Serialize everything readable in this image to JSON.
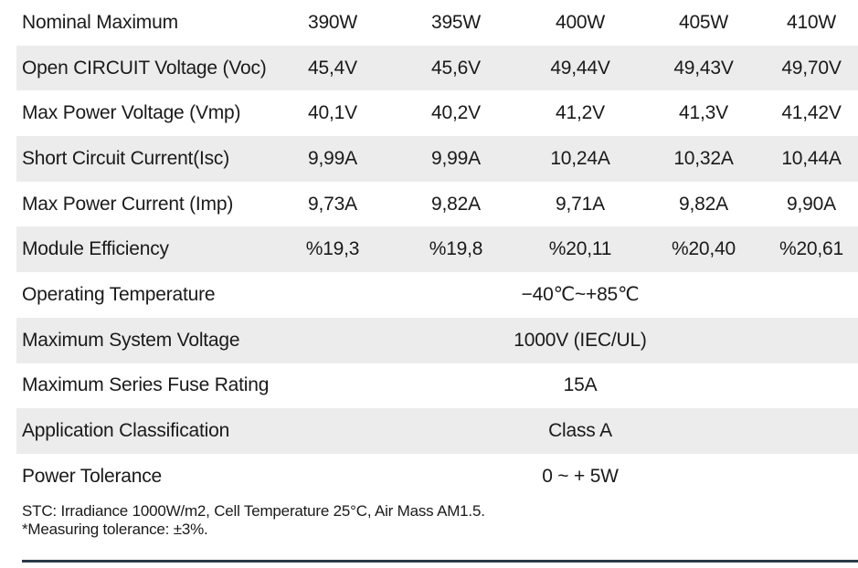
{
  "rows": [
    {
      "label": "Nominal Maximum",
      "values": [
        "390W",
        "395W",
        "400W",
        "405W",
        "410W"
      ]
    },
    {
      "label": "Open CIRCUIT Voltage (Voc)",
      "values": [
        "45,4V",
        "45,6V",
        "49,44V",
        "49,43V",
        "49,70V"
      ]
    },
    {
      "label": "Max Power Voltage (Vmp)",
      "values": [
        "40,1V",
        "40,2V",
        "41,2V",
        "41,3V",
        "41,42V"
      ]
    },
    {
      "label": "Short Circuit Current(Isc)",
      "values": [
        "9,99A",
        "9,99A",
        "10,24A",
        "10,32A",
        "10,44A"
      ]
    },
    {
      "label": "Max Power Current (Imp)",
      "values": [
        "9,73A",
        "9,82A",
        "9,71A",
        "9,82A",
        "9,90A"
      ]
    },
    {
      "label": "Module Efficiency",
      "values": [
        "%19,3",
        "%19,8",
        "%20,11",
        "%20,40",
        "%20,61"
      ]
    },
    {
      "label": "Operating Temperature",
      "merged": "−40℃~+85℃"
    },
    {
      "label": "Maximum System Voltage",
      "merged": "1000V (IEC/UL)"
    },
    {
      "label": "Maximum Series Fuse Rating",
      "merged": "15A"
    },
    {
      "label": "Application Classification",
      "merged": "Class A"
    },
    {
      "label": "Power Tolerance",
      "merged": "0 ~ + 5W"
    }
  ],
  "notes": {
    "line1": "STC: Irradiance 1000W/m2, Cell Temperature 25°C, Air Mass AM1.5.",
    "line2": "*Measuring tolerance: ±3%."
  }
}
